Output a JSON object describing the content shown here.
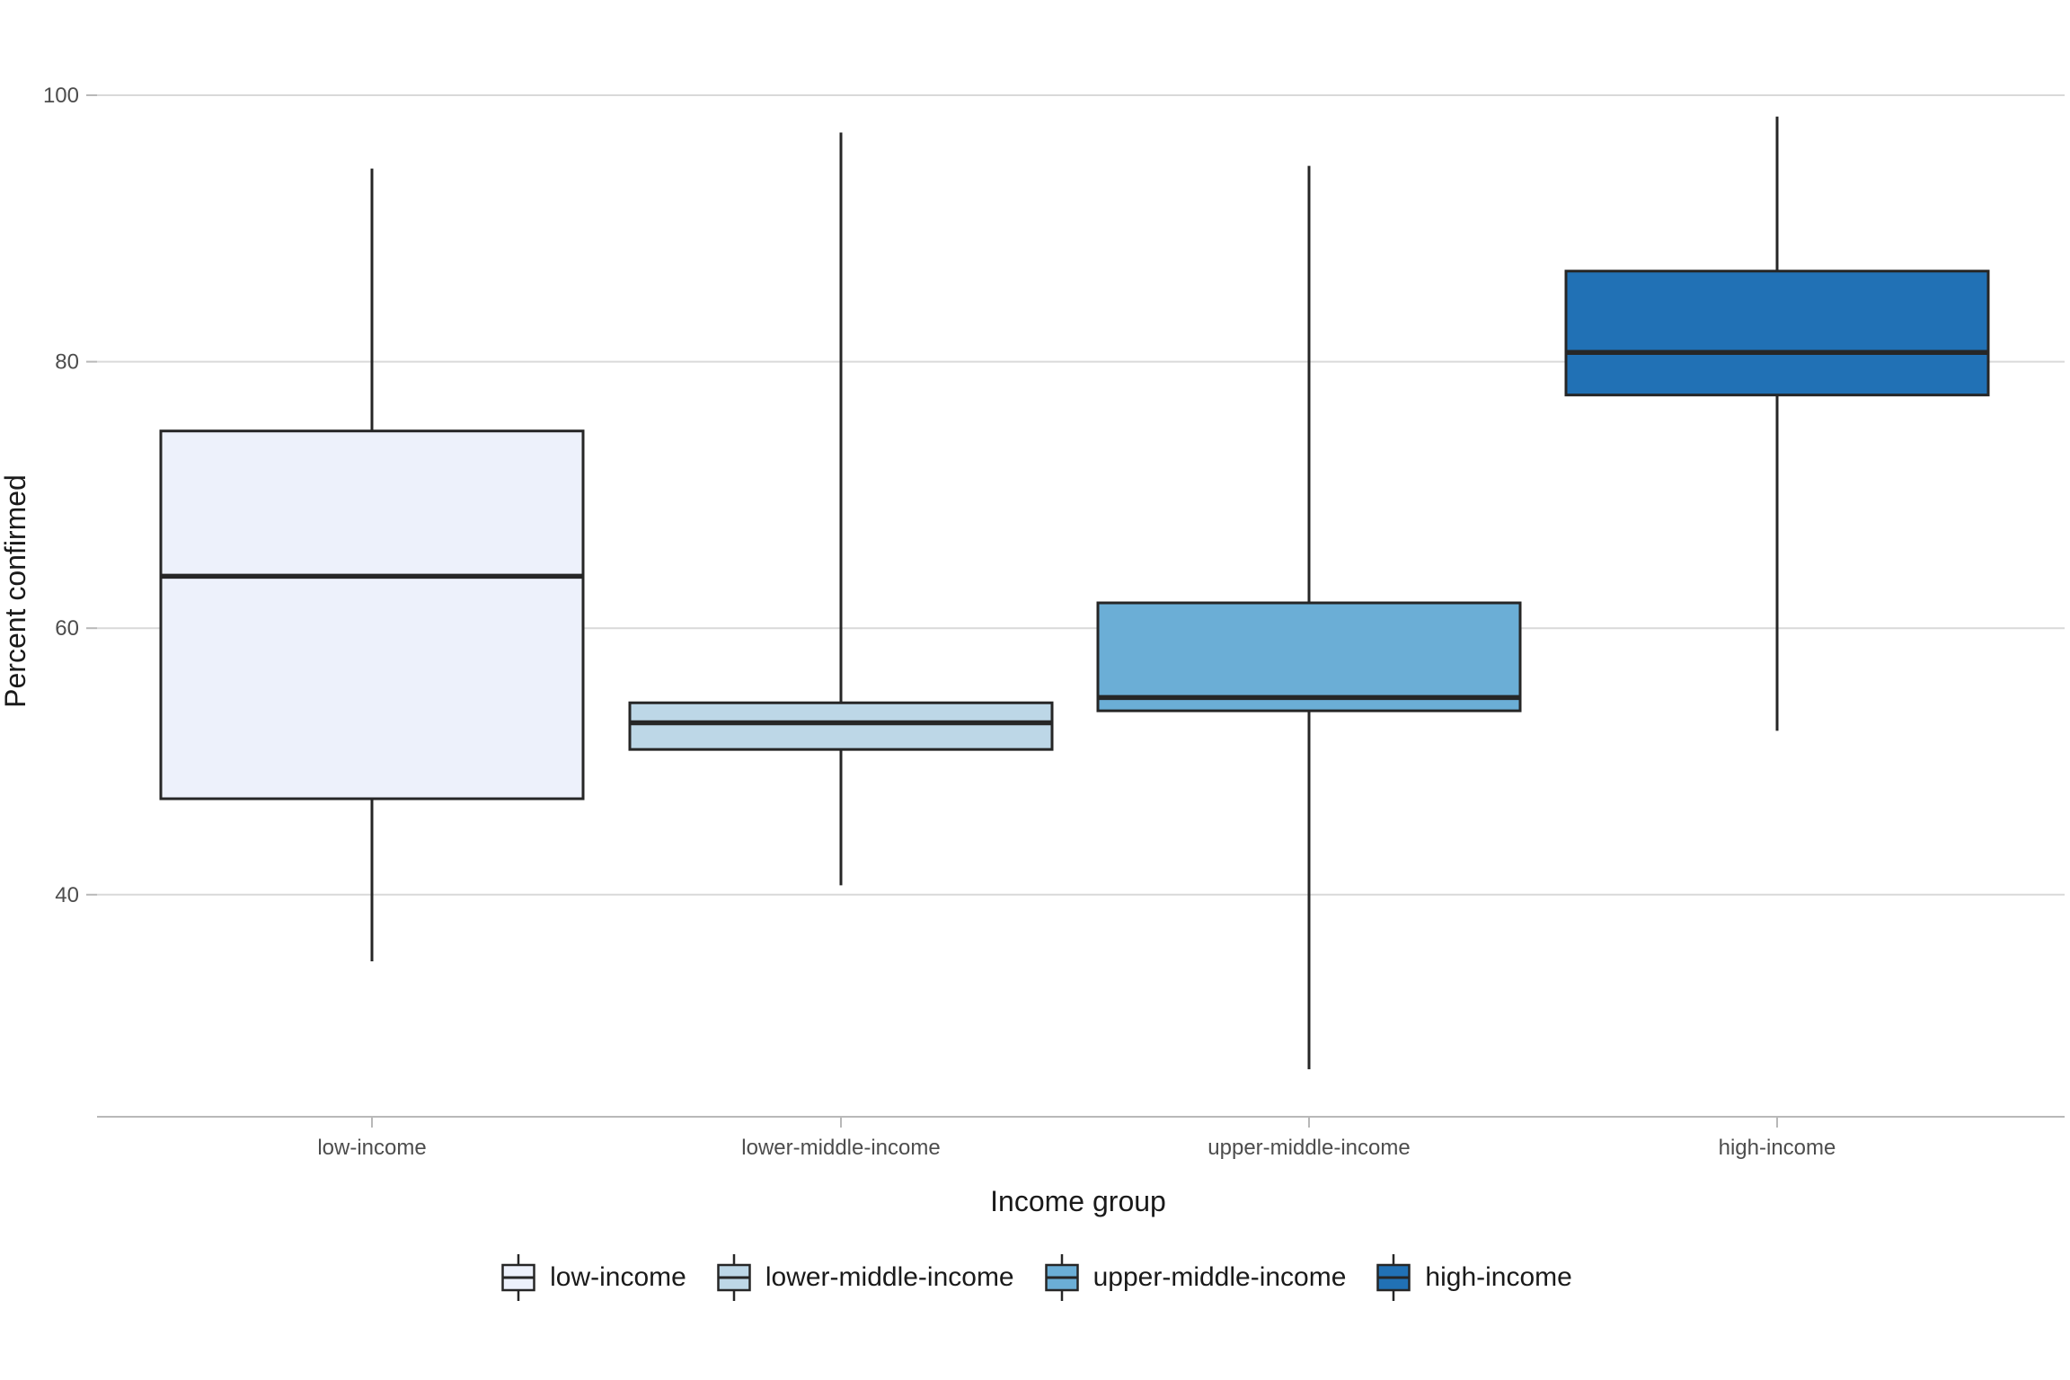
{
  "chart_data": {
    "type": "boxplot",
    "title": "",
    "xlabel": "Income group",
    "ylabel": "Percent confirmed",
    "categories": [
      "low-income",
      "lower-middle-income",
      "upper-middle-income",
      "high-income"
    ],
    "yticks": [
      100,
      80,
      60,
      40
    ],
    "ylim": [
      23,
      106
    ],
    "grid": "horizontal-only",
    "legend_position": "bottom",
    "series": [
      {
        "name": "low-income",
        "color": "#EDF1FB",
        "min": 35.0,
        "q1": 47.2,
        "median": 63.9,
        "q3": 74.8,
        "max": 94.5
      },
      {
        "name": "lower-middle-income",
        "color": "#BDD7E7",
        "min": 40.7,
        "q1": 50.9,
        "median": 52.9,
        "q3": 54.4,
        "max": 97.2
      },
      {
        "name": "upper-middle-income",
        "color": "#6BAED6",
        "min": 26.9,
        "q1": 53.8,
        "median": 54.8,
        "q3": 61.9,
        "max": 94.7
      },
      {
        "name": "high-income",
        "color": "#2171B5",
        "min": 52.3,
        "q1": 77.5,
        "median": 80.7,
        "q3": 86.8,
        "max": 98.4
      }
    ],
    "colors": {
      "box_border": "#262626",
      "gridline": "#D9D9D9",
      "axis_line": "#B8B8B8",
      "tick_mark": "#B8B8B8",
      "tick_text": "#4D4D4D",
      "title_text": "#1A1A1A"
    }
  }
}
